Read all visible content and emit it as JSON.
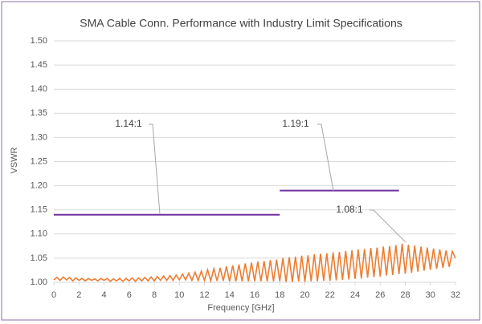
{
  "chart_data": {
    "type": "line",
    "title": "SMA Cable Conn. Performance with Industry Limit Specifications",
    "x_label": "Frequency [GHz]",
    "y_label": "VSWR",
    "xlim": [
      0,
      32
    ],
    "xticks": [
      0,
      2,
      4,
      6,
      8,
      10,
      12,
      14,
      16,
      18,
      20,
      22,
      24,
      26,
      28,
      30,
      32
    ],
    "ylim": [
      1.0,
      1.5
    ],
    "yticks": [
      {
        "value": 1.0,
        "label": "1.00"
      },
      {
        "value": 1.05,
        "label": "1.05"
      },
      {
        "value": 1.1,
        "label": "1.10"
      },
      {
        "value": 1.15,
        "label": "1.15"
      },
      {
        "value": 1.2,
        "label": "1.20"
      },
      {
        "value": 1.25,
        "label": "1.25"
      },
      {
        "value": 1.3,
        "label": "1.30"
      },
      {
        "value": 1.35,
        "label": "1.35"
      },
      {
        "value": 1.4,
        "label": "1.40"
      },
      {
        "value": 1.45,
        "label": "1.45"
      },
      {
        "value": 1.5,
        "label": "1.50"
      }
    ],
    "grid": true,
    "series": [
      {
        "color": "#ed7d31",
        "x": [
          0,
          0.25,
          0.5,
          0.75,
          1,
          1.25,
          1.5,
          1.75,
          2,
          2.25,
          2.5,
          2.75,
          3,
          3.25,
          3.5,
          3.75,
          4,
          4.25,
          4.5,
          4.75,
          5,
          5.25,
          5.5,
          5.75,
          6,
          6.25,
          6.5,
          6.75,
          7,
          7.25,
          7.5,
          7.75,
          8,
          8.25,
          8.5,
          8.75,
          9,
          9.25,
          9.5,
          9.75,
          10,
          10.25,
          10.5,
          10.75,
          11,
          11.25,
          11.5,
          11.75,
          12,
          12.25,
          12.5,
          12.75,
          13,
          13.25,
          13.5,
          13.75,
          14,
          14.25,
          14.5,
          14.75,
          15,
          15.25,
          15.5,
          15.75,
          16,
          16.25,
          16.5,
          16.75,
          17,
          17.25,
          17.5,
          17.75,
          18,
          18.25,
          18.5,
          18.75,
          19,
          19.25,
          19.5,
          19.75,
          20,
          20.25,
          20.5,
          20.75,
          21,
          21.25,
          21.5,
          21.75,
          22,
          22.25,
          22.5,
          22.75,
          23,
          23.25,
          23.5,
          23.75,
          24,
          24.25,
          24.5,
          24.75,
          25,
          25.25,
          25.5,
          25.75,
          26,
          26.25,
          26.5,
          26.75,
          27,
          27.25,
          27.5,
          27.75,
          28,
          28.25,
          28.5,
          28.75,
          29,
          29.25,
          29.5,
          29.75,
          30,
          30.25,
          30.5,
          30.75,
          31,
          31.25,
          31.5,
          31.75,
          32
        ],
        "values": [
          1.005,
          1.01,
          1.004,
          1.011,
          1.005,
          1.01,
          1.003,
          1.009,
          1.004,
          1.008,
          1.003,
          1.008,
          1.004,
          1.007,
          1.003,
          1.008,
          1.004,
          1.008,
          1.002,
          1.007,
          1.003,
          1.008,
          1.002,
          1.008,
          1.003,
          1.009,
          1.002,
          1.009,
          1.003,
          1.01,
          1.003,
          1.011,
          1.003,
          1.012,
          1.004,
          1.013,
          1.004,
          1.014,
          1.004,
          1.015,
          1.005,
          1.017,
          1.005,
          1.019,
          1.004,
          1.021,
          1.004,
          1.023,
          1.004,
          1.026,
          1.003,
          1.028,
          1.003,
          1.03,
          1.003,
          1.033,
          1.002,
          1.035,
          1.002,
          1.037,
          1.002,
          1.039,
          1.002,
          1.041,
          1.002,
          1.043,
          1.002,
          1.044,
          1.002,
          1.046,
          1.002,
          1.047,
          1.002,
          1.05,
          1.001,
          1.052,
          1.001,
          1.053,
          1.002,
          1.055,
          1.001,
          1.056,
          1.002,
          1.058,
          1.002,
          1.059,
          1.003,
          1.06,
          1.003,
          1.062,
          1.004,
          1.063,
          1.005,
          1.065,
          1.006,
          1.066,
          1.007,
          1.068,
          1.008,
          1.069,
          1.01,
          1.071,
          1.011,
          1.072,
          1.012,
          1.074,
          1.014,
          1.075,
          1.015,
          1.077,
          1.017,
          1.08,
          1.018,
          1.078,
          1.02,
          1.076,
          1.022,
          1.074,
          1.024,
          1.072,
          1.026,
          1.07,
          1.028,
          1.068,
          1.03,
          1.066,
          1.032,
          1.064,
          1.05
        ]
      },
      {
        "color": "#7030a0",
        "x": [
          0,
          18
        ],
        "values": [
          1.14,
          1.14
        ]
      },
      {
        "color": "#7030a0",
        "x": [
          18,
          27.5
        ],
        "values": [
          1.19,
          1.19
        ]
      }
    ],
    "annotations": [
      "1.14:1",
      "1.19:1",
      "1.08:1"
    ]
  }
}
